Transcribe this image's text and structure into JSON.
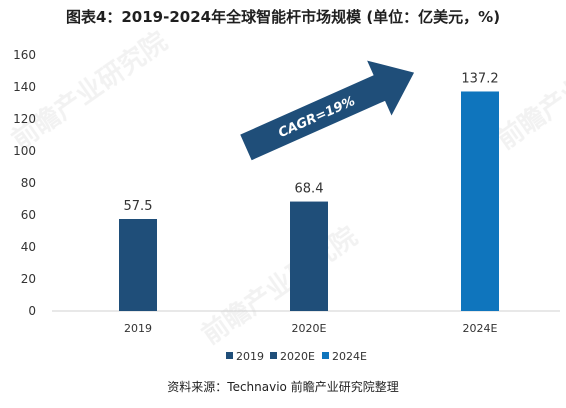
{
  "chart_data": {
    "type": "bar",
    "title": "图表4：2019-2024年全球智能杆市场规模 (单位：亿美元，%)",
    "categories": [
      "2019",
      "2020E",
      "2024E"
    ],
    "values": [
      57.5,
      68.4,
      137.2
    ],
    "data_labels": [
      "57.5",
      "68.4",
      "137.2"
    ],
    "colors": [
      "#1f4e79",
      "#1f4e79",
      "#0f75bd"
    ],
    "ylim": [
      0,
      160
    ],
    "yticks": [
      "0",
      "20",
      "40",
      "60",
      "80",
      "100",
      "120",
      "140",
      "160"
    ],
    "legend": [
      {
        "label": "2019",
        "color": "#1f4e79"
      },
      {
        "label": "2020E",
        "color": "#1f4e79"
      },
      {
        "label": "2024E",
        "color": "#0f75bd"
      }
    ],
    "legend_position": "bottom",
    "annotation": "CAGR=19%",
    "grid": false
  },
  "source": "资料来源：Technavio 前瞻产业研究院整理",
  "watermark": "前瞻产业研究院"
}
